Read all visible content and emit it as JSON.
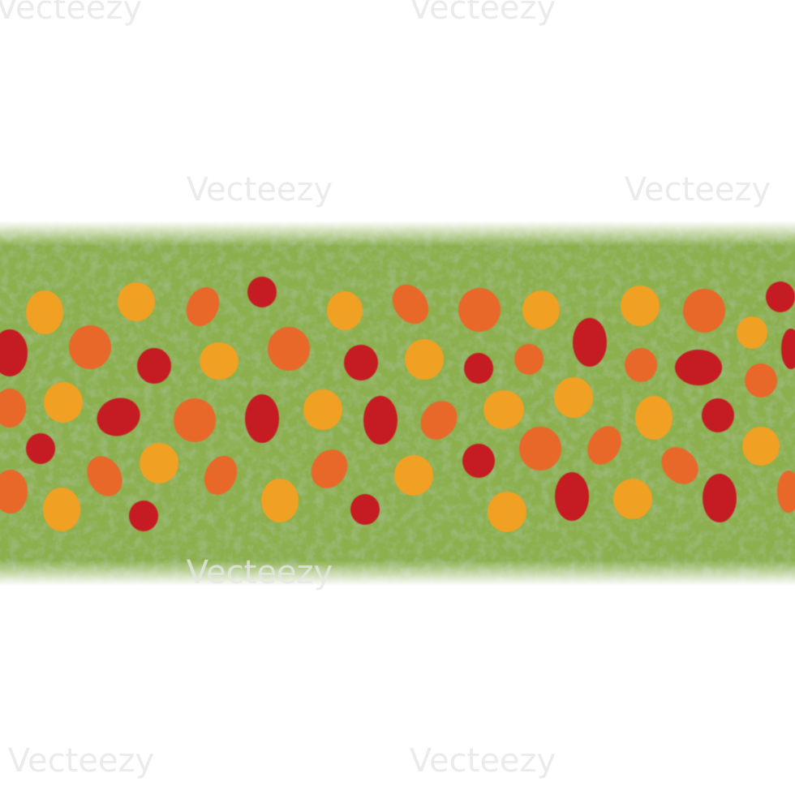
{
  "watermark": "Vecteezy"
}
